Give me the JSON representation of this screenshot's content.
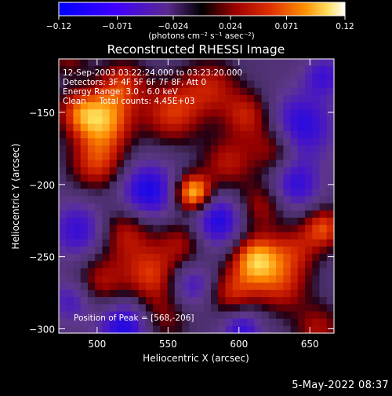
{
  "chart_data": {
    "type": "heatmap",
    "title": "Reconstructed RHESSI Image",
    "xlabel": "Heliocentric X (arcsec)",
    "ylabel": "Heliocentric Y (arcsec)",
    "xlim": [
      473,
      667
    ],
    "ylim": [
      -303,
      -113
    ],
    "x_ticks": [
      500,
      550,
      600,
      650
    ],
    "y_ticks": [
      -150,
      -200,
      -250,
      -300
    ],
    "colorbar": {
      "range": [
        -0.12,
        0.12
      ],
      "ticks": [
        "-0.12",
        "-0.071",
        "-0.024",
        "0.024",
        "0.071",
        "0.12"
      ],
      "unit_label": "(photons cm⁻² s⁻¹ asec⁻²)",
      "colors": [
        "#0000ff",
        "#7f00ff",
        "#000000",
        "#cc0000",
        "#ff8800",
        "#ffffff"
      ]
    },
    "annotations": [
      "12-Sep-2003 03:22:24.000 to 03:23:20.000",
      "Detectors: 3F 4F 5F 6F 7F 8F, Att 0",
      "Energy Range: 3.0 - 6.0 keV",
      "Clean     Total counts: 4.45E+03"
    ],
    "peak_label": "Position of Peak = [568,-206]",
    "peak": [
      568,
      -206
    ],
    "grid_cells": [
      38,
      38
    ],
    "blobs": [
      {
        "x": 568,
        "y": -206,
        "v": 0.12,
        "s": 9
      },
      {
        "x": 505,
        "y": -155,
        "v": 0.095,
        "s": 14
      },
      {
        "x": 500,
        "y": -185,
        "v": 0.07,
        "s": 14
      },
      {
        "x": 518,
        "y": -130,
        "v": 0.06,
        "s": 12
      },
      {
        "x": 487,
        "y": -150,
        "v": 0.06,
        "s": 11
      },
      {
        "x": 612,
        "y": -252,
        "v": 0.105,
        "s": 12
      },
      {
        "x": 630,
        "y": -270,
        "v": 0.06,
        "s": 14
      },
      {
        "x": 595,
        "y": -275,
        "v": 0.06,
        "s": 12
      },
      {
        "x": 660,
        "y": -230,
        "v": 0.075,
        "s": 10
      },
      {
        "x": 640,
        "y": -245,
        "v": 0.05,
        "s": 12
      },
      {
        "x": 553,
        "y": -150,
        "v": 0.07,
        "s": 15
      },
      {
        "x": 580,
        "y": -132,
        "v": 0.055,
        "s": 14
      },
      {
        "x": 606,
        "y": -152,
        "v": 0.06,
        "s": 12
      },
      {
        "x": 625,
        "y": -175,
        "v": 0.055,
        "s": 12
      },
      {
        "x": 592,
        "y": -185,
        "v": 0.055,
        "s": 13
      },
      {
        "x": 520,
        "y": -233,
        "v": 0.06,
        "s": 14
      },
      {
        "x": 538,
        "y": -262,
        "v": 0.065,
        "s": 13
      },
      {
        "x": 502,
        "y": -268,
        "v": 0.055,
        "s": 14
      },
      {
        "x": 560,
        "y": -240,
        "v": 0.05,
        "s": 12
      },
      {
        "x": 545,
        "y": -292,
        "v": 0.045,
        "s": 14
      },
      {
        "x": 615,
        "y": -215,
        "v": 0.05,
        "s": 12
      },
      {
        "x": 656,
        "y": -300,
        "v": 0.05,
        "s": 12
      },
      {
        "x": 480,
        "y": -112,
        "v": 0.04,
        "s": 10
      },
      {
        "x": 643,
        "y": -160,
        "v": -0.07,
        "s": 16
      },
      {
        "x": 535,
        "y": -205,
        "v": -0.08,
        "s": 14
      },
      {
        "x": 585,
        "y": -225,
        "v": -0.075,
        "s": 13
      },
      {
        "x": 488,
        "y": -232,
        "v": -0.06,
        "s": 14
      },
      {
        "x": 520,
        "y": -298,
        "v": -0.08,
        "s": 13
      },
      {
        "x": 640,
        "y": -200,
        "v": -0.06,
        "s": 12
      },
      {
        "x": 660,
        "y": -125,
        "v": -0.05,
        "s": 10
      },
      {
        "x": 567,
        "y": -270,
        "v": -0.05,
        "s": 11
      },
      {
        "x": 602,
        "y": -300,
        "v": -0.06,
        "s": 10
      },
      {
        "x": 483,
        "y": -280,
        "v": -0.05,
        "s": 11
      }
    ]
  },
  "footer": {
    "timestamp": "5-May-2022 08:37"
  }
}
